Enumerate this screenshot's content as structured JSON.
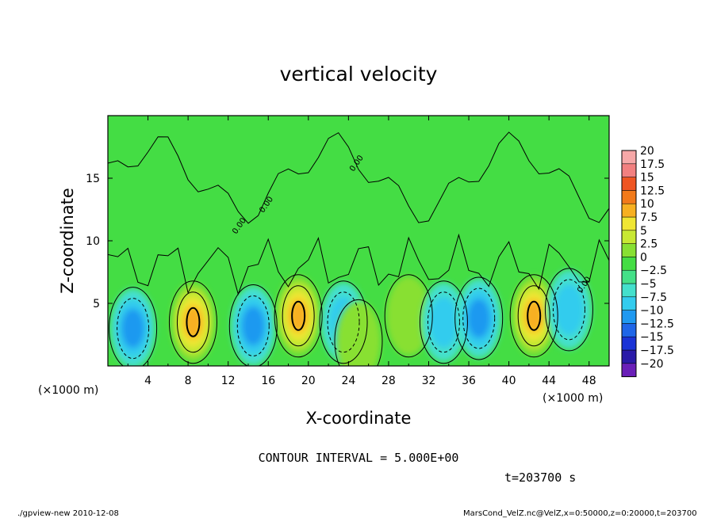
{
  "chart_data": {
    "type": "heatmap",
    "title": "vertical velocity",
    "xlabel": "X-coordinate",
    "ylabel": "Z-coordinate",
    "x_unit_label": "(×1000 m)",
    "y_unit_label": "(×1000 m)",
    "xlim": [
      0,
      50
    ],
    "ylim": [
      0,
      20
    ],
    "x_ticks": [
      4,
      8,
      12,
      16,
      20,
      24,
      28,
      32,
      36,
      40,
      44,
      48
    ],
    "y_ticks": [
      5,
      10,
      15
    ],
    "colorbar": {
      "levels": [
        -20,
        -17.5,
        -15,
        -12.5,
        -10,
        -7.5,
        -5,
        -2.5,
        0,
        2.5,
        5,
        7.5,
        10,
        12.5,
        15,
        17.5,
        20
      ],
      "labels": [
        "20",
        "17.5",
        "15",
        "12.5",
        "10",
        "7.5",
        "5",
        "2.5",
        "0",
        "−2.5",
        "−5",
        "−7.5",
        "−10",
        "−12.5",
        "−15",
        "−17.5",
        "−20"
      ],
      "colors": [
        "#6a1fb8",
        "#2a1aa8",
        "#1a33d6",
        "#1f66e8",
        "#1f99f0",
        "#33ccee",
        "#44e0cc",
        "#44e088",
        "#44dd44",
        "#88e033",
        "#c8e833",
        "#f0e633",
        "#f7b021",
        "#f27a1a",
        "#ef5522",
        "#f28080",
        "#f6a8a8"
      ]
    },
    "contour_interval": "CONTOUR INTERVAL = 5.000E+00",
    "contour_labels": [
      "0.00",
      "0.00",
      "0.00",
      "0.00"
    ],
    "features": [
      {
        "x": 2.5,
        "z": 3.0,
        "w": -8.0
      },
      {
        "x": 8.5,
        "z": 3.5,
        "w": 10.0
      },
      {
        "x": 14.5,
        "z": 3.2,
        "w": -8.0
      },
      {
        "x": 19.0,
        "z": 4.0,
        "w": 10.0
      },
      {
        "x": 23.5,
        "z": 3.5,
        "w": -5.0
      },
      {
        "x": 25.0,
        "z": 2.0,
        "w": 3.0
      },
      {
        "x": 30.0,
        "z": 4.0,
        "w": 4.0
      },
      {
        "x": 33.5,
        "z": 3.5,
        "w": -5.0
      },
      {
        "x": 37.0,
        "z": 3.8,
        "w": -8.0
      },
      {
        "x": 42.5,
        "z": 4.0,
        "w": 12.0
      },
      {
        "x": 46.0,
        "z": 4.5,
        "w": -6.0
      }
    ]
  },
  "labels": {
    "title": "vertical velocity",
    "xlabel": "X-coordinate",
    "ylabel": "Z-coordinate",
    "x_unit_left": "(×1000 m)",
    "x_unit_right": "(×1000 m)",
    "contour_interval": "CONTOUR INTERVAL = 5.000E+00",
    "time": "t=203700 s",
    "footer_left": "./gpview-new   2010-12-08",
    "footer_right": "MarsCond_VelZ.nc@VelZ,x=0:50000,z=0:20000,t=203700"
  }
}
